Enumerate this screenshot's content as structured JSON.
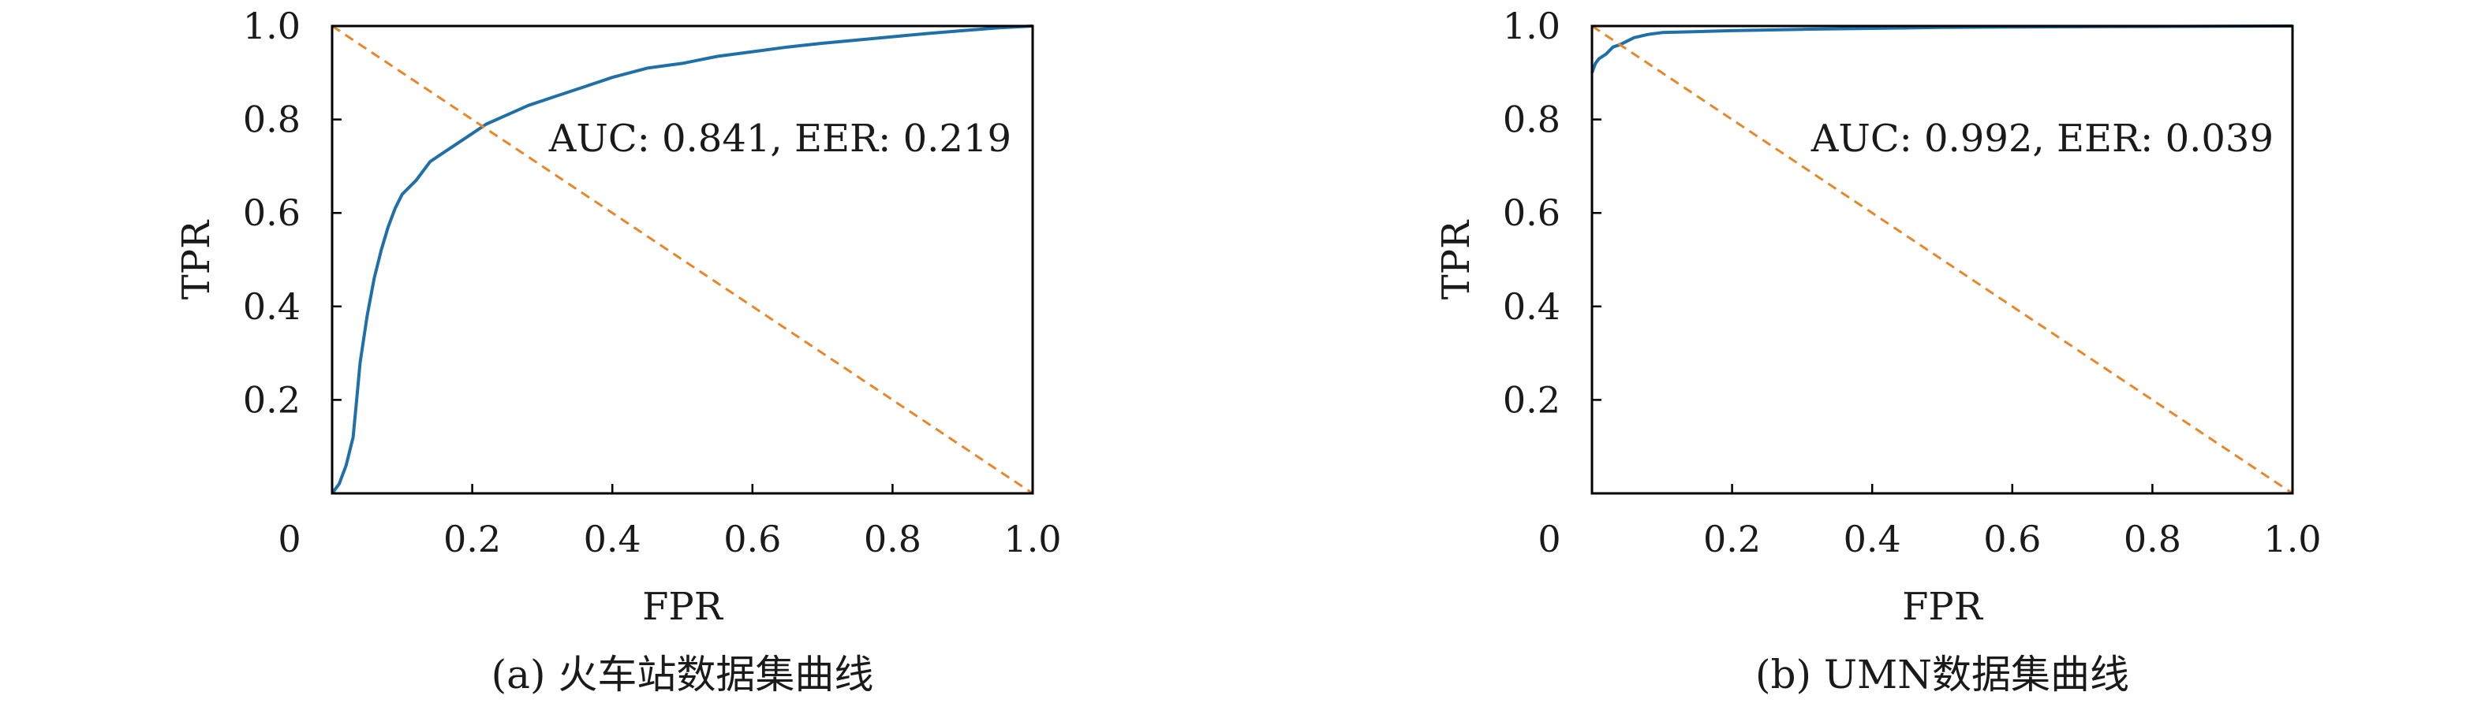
{
  "chart_data": [
    {
      "type": "line",
      "caption": "(a) 火车站数据集曲线",
      "xlabel": "FPR",
      "ylabel": "TPR",
      "xlim": [
        0,
        1
      ],
      "ylim": [
        0,
        1
      ],
      "x_ticks": [
        0,
        0.2,
        0.4,
        0.6,
        0.8,
        1.0
      ],
      "x_tick_labels": [
        "0",
        "0.2",
        "0.4",
        "0.6",
        "0.8",
        "1.0"
      ],
      "y_ticks": [
        0.2,
        0.4,
        0.6,
        0.8,
        1.0
      ],
      "y_tick_labels": [
        "0.2",
        "0.4",
        "0.6",
        "0.8",
        "1.0"
      ],
      "grid": false,
      "annotation": "AUC: 0.841, EER: 0.219",
      "series": [
        {
          "kind": "roc",
          "color": "#1f6fa8",
          "points": [
            [
              0.0,
              0.0
            ],
            [
              0.01,
              0.02
            ],
            [
              0.02,
              0.06
            ],
            [
              0.03,
              0.12
            ],
            [
              0.035,
              0.2
            ],
            [
              0.04,
              0.28
            ],
            [
              0.05,
              0.38
            ],
            [
              0.06,
              0.46
            ],
            [
              0.07,
              0.52
            ],
            [
              0.08,
              0.57
            ],
            [
              0.09,
              0.61
            ],
            [
              0.1,
              0.64
            ],
            [
              0.12,
              0.67
            ],
            [
              0.14,
              0.71
            ],
            [
              0.16,
              0.73
            ],
            [
              0.18,
              0.75
            ],
            [
              0.2,
              0.77
            ],
            [
              0.22,
              0.79
            ],
            [
              0.25,
              0.81
            ],
            [
              0.28,
              0.83
            ],
            [
              0.32,
              0.85
            ],
            [
              0.36,
              0.87
            ],
            [
              0.4,
              0.89
            ],
            [
              0.45,
              0.91
            ],
            [
              0.5,
              0.92
            ],
            [
              0.55,
              0.935
            ],
            [
              0.6,
              0.945
            ],
            [
              0.65,
              0.955
            ],
            [
              0.7,
              0.963
            ],
            [
              0.75,
              0.97
            ],
            [
              0.8,
              0.977
            ],
            [
              0.85,
              0.984
            ],
            [
              0.9,
              0.99
            ],
            [
              0.95,
              0.996
            ],
            [
              1.0,
              1.0
            ]
          ]
        },
        {
          "kind": "eer-diagonal",
          "color": "#e8862a",
          "points": [
            [
              0,
              1
            ],
            [
              1,
              0
            ]
          ]
        }
      ]
    },
    {
      "type": "line",
      "caption": "(b) UMN数据集曲线",
      "xlabel": "FPR",
      "ylabel": "TPR",
      "xlim": [
        0,
        1
      ],
      "ylim": [
        0,
        1
      ],
      "x_ticks": [
        0,
        0.2,
        0.4,
        0.6,
        0.8,
        1.0
      ],
      "x_tick_labels": [
        "0",
        "0.2",
        "0.4",
        "0.6",
        "0.8",
        "1.0"
      ],
      "y_ticks": [
        0.2,
        0.4,
        0.6,
        0.8,
        1.0
      ],
      "y_tick_labels": [
        "0.2",
        "0.4",
        "0.6",
        "0.8",
        "1.0"
      ],
      "grid": false,
      "annotation": "AUC: 0.992, EER: 0.039",
      "series": [
        {
          "kind": "roc",
          "color": "#1f6fa8",
          "points": [
            [
              0.0,
              0.9
            ],
            [
              0.005,
              0.92
            ],
            [
              0.01,
              0.93
            ],
            [
              0.02,
              0.94
            ],
            [
              0.03,
              0.955
            ],
            [
              0.04,
              0.96
            ],
            [
              0.06,
              0.975
            ],
            [
              0.08,
              0.982
            ],
            [
              0.1,
              0.986
            ],
            [
              0.15,
              0.988
            ],
            [
              0.2,
              0.99
            ],
            [
              0.3,
              0.993
            ],
            [
              0.4,
              0.995
            ],
            [
              0.5,
              0.997
            ],
            [
              0.6,
              0.998
            ],
            [
              0.8,
              0.999
            ],
            [
              1.0,
              1.0
            ]
          ]
        },
        {
          "kind": "eer-diagonal",
          "color": "#e8862a",
          "points": [
            [
              0,
              1
            ],
            [
              1,
              0
            ]
          ]
        }
      ]
    }
  ]
}
